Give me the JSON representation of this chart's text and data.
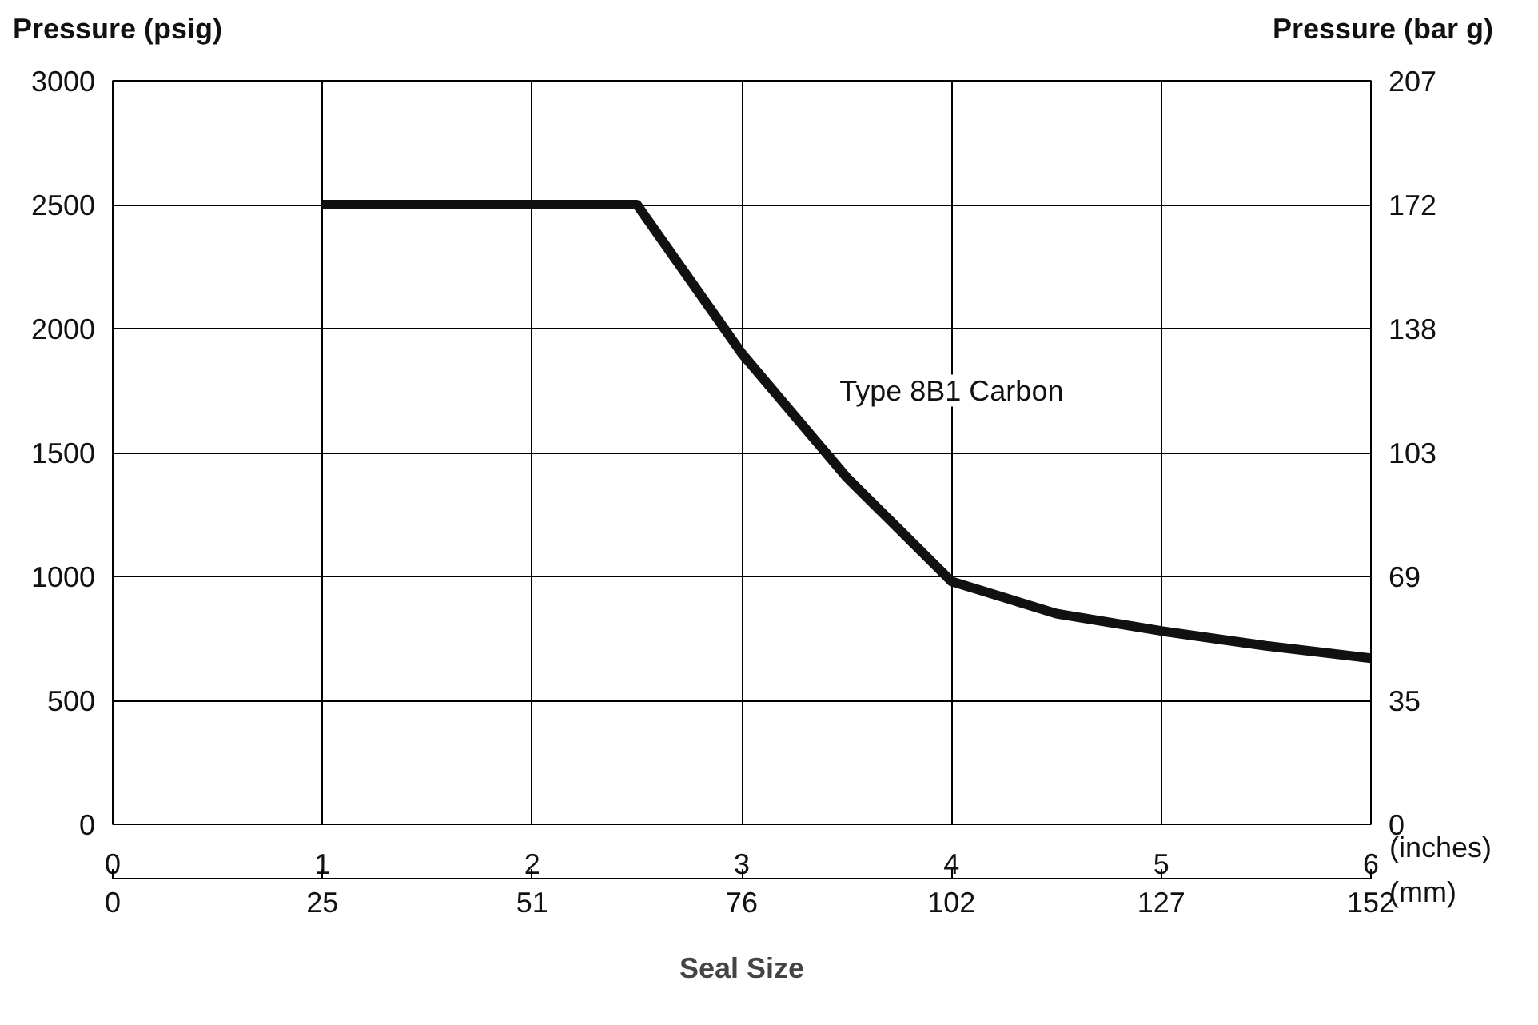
{
  "chart_data": {
    "type": "line",
    "xlabel": "Seal Size",
    "ylabel": "Pressure (psig)",
    "y2label": "Pressure (bar g)",
    "x": [
      1,
      2.5,
      3,
      3.5,
      4,
      4.5,
      5,
      5.5,
      6
    ],
    "series": [
      {
        "name": "Type 8B1 Carbon",
        "color": "#111111",
        "values": [
          2500,
          2500,
          1900,
          1400,
          980,
          850,
          780,
          720,
          670
        ]
      }
    ],
    "xlim": [
      0,
      6
    ],
    "xticks": [
      0,
      1,
      2,
      3,
      4,
      5,
      6
    ],
    "x2lim": [
      0,
      152.4
    ],
    "x2ticks": [
      0,
      {
        "value": 25.4,
        "label": "25"
      },
      {
        "value": 50.8,
        "label": "51"
      },
      {
        "value": 76.2,
        "label": "76"
      },
      {
        "value": 101.6,
        "label": "102"
      },
      127,
      {
        "value": 152.4,
        "label": "152"
      }
    ],
    "ylim": [
      0,
      3000
    ],
    "yticks": [
      0,
      500,
      1000,
      1500,
      2000,
      2500,
      3000
    ],
    "y2lim": [
      0,
      207
    ],
    "y2ticks": [
      0,
      {
        "value": 34.5,
        "label": "35"
      },
      69,
      {
        "value": 103.5,
        "label": "103"
      },
      138,
      {
        "value": 172.5,
        "label": "172"
      },
      207
    ],
    "annotations": [
      "(inches)",
      "(mm)"
    ],
    "grid": true
  }
}
